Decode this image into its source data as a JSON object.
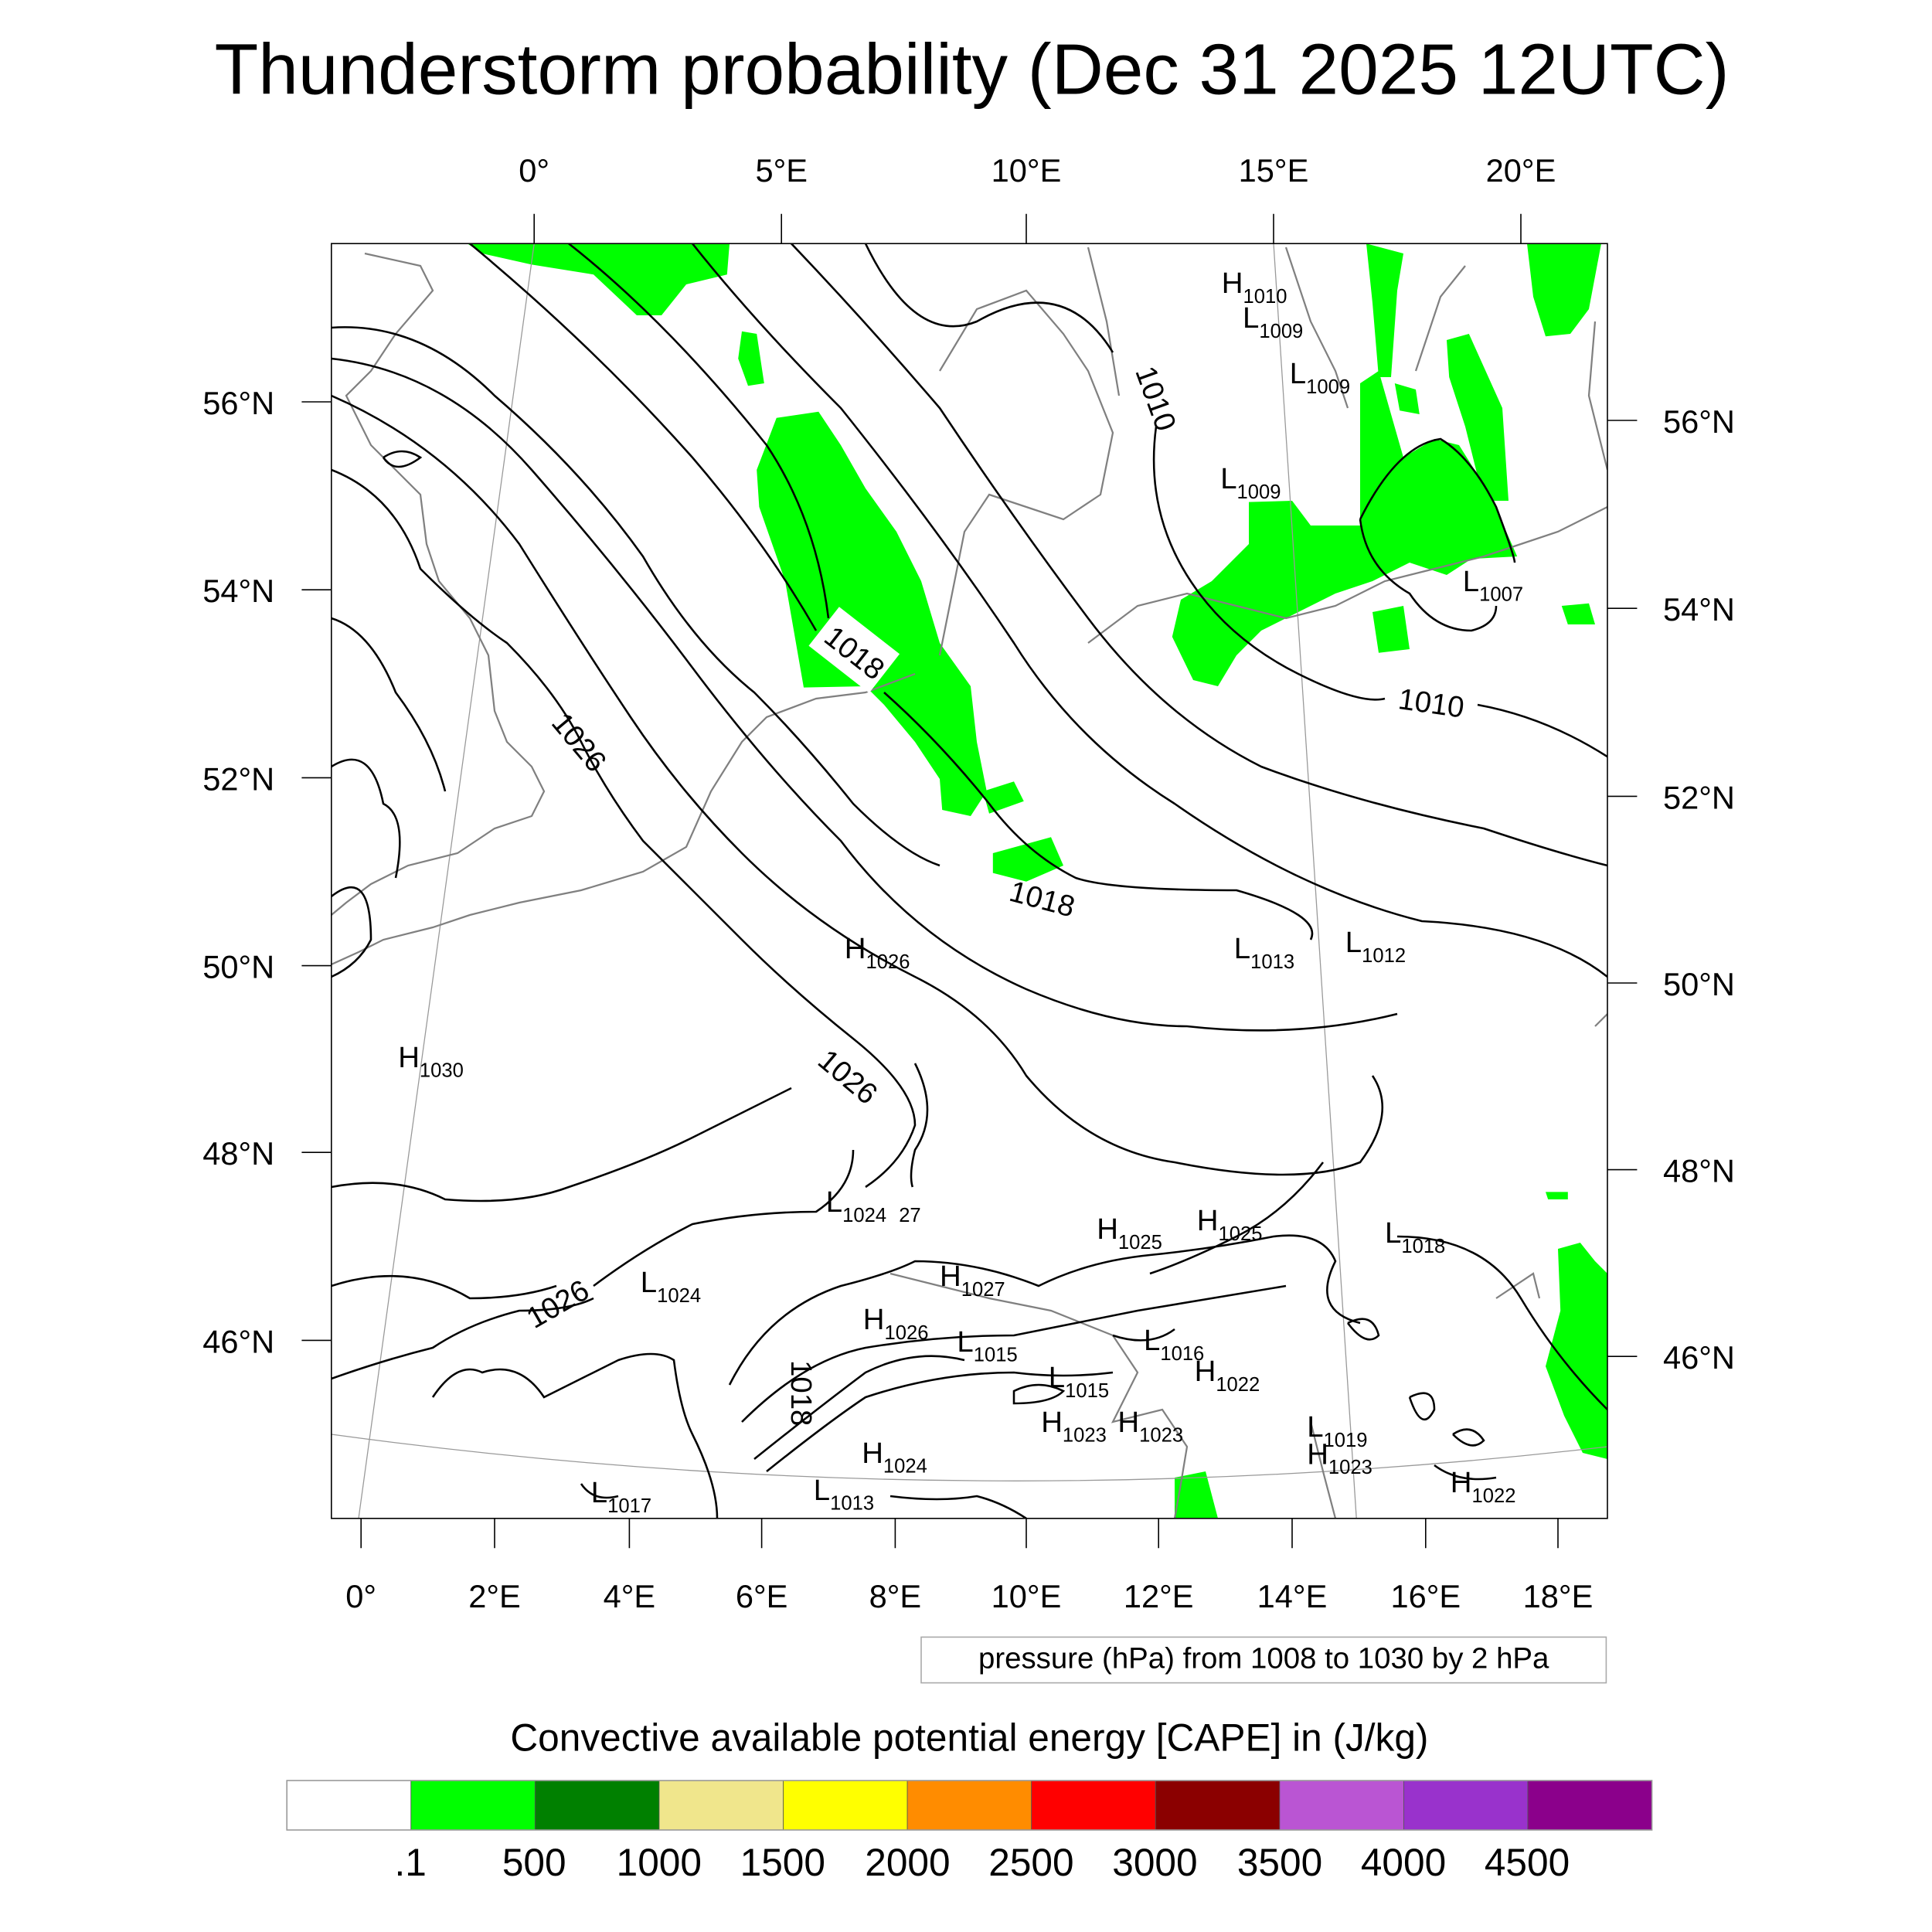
{
  "title": "Thunderstorm probability (Dec 31 2025 12UTC)",
  "axes": {
    "top_lon_labels": [
      "0°",
      "5°E",
      "10°E",
      "15°E",
      "20°E"
    ],
    "bottom_lon_labels": [
      "0°",
      "2°E",
      "4°E",
      "6°E",
      "8°E",
      "10°E",
      "12°E",
      "14°E",
      "16°E",
      "18°E"
    ],
    "left_lat_labels": [
      "56°N",
      "54°N",
      "52°N",
      "50°N",
      "48°N",
      "46°N"
    ],
    "right_lat_labels": [
      "56°N",
      "54°N",
      "52°N",
      "50°N",
      "48°N",
      "46°N"
    ]
  },
  "contour_info": "pressure (hPa) from 1008 to 1030 by 2 hPa",
  "contour_labels": [
    "1010",
    "1010",
    "1018",
    "1018",
    "1026",
    "1026",
    "1026",
    "1018",
    "27"
  ],
  "pressure_centers": [
    {
      "type": "H",
      "value": "1010"
    },
    {
      "type": "L",
      "value": "1009"
    },
    {
      "type": "L",
      "value": "1009"
    },
    {
      "type": "L",
      "value": "1009"
    },
    {
      "type": "L",
      "value": "1007"
    },
    {
      "type": "H",
      "value": "1026"
    },
    {
      "type": "L",
      "value": "1013"
    },
    {
      "type": "L",
      "value": "1012"
    },
    {
      "type": "H",
      "value": "1030"
    },
    {
      "type": "L",
      "value": "1024"
    },
    {
      "type": "H",
      "value": "1025"
    },
    {
      "type": "H",
      "value": "1025"
    },
    {
      "type": "L",
      "value": "1018"
    },
    {
      "type": "H",
      "value": "1027"
    },
    {
      "type": "L",
      "value": "1024"
    },
    {
      "type": "H",
      "value": "1026"
    },
    {
      "type": "L",
      "value": "1015"
    },
    {
      "type": "L",
      "value": "1016"
    },
    {
      "type": "L",
      "value": "1015"
    },
    {
      "type": "H",
      "value": "1022"
    },
    {
      "type": "H",
      "value": "1023"
    },
    {
      "type": "H",
      "value": "1023"
    },
    {
      "type": "L",
      "value": "1019"
    },
    {
      "type": "H",
      "value": "1023"
    },
    {
      "type": "H",
      "value": "1024"
    },
    {
      "type": "L",
      "value": "1017"
    },
    {
      "type": "L",
      "value": "1013"
    },
    {
      "type": "H",
      "value": "1022"
    }
  ],
  "colorbar": {
    "title": "Convective available potential energy [CAPE] in (J/kg)",
    "colors": [
      "#ffffff",
      "#00ff00",
      "#008000",
      "#f0e68c",
      "#ffff00",
      "#ff8c00",
      "#ff0000",
      "#8b0000",
      "#ba55d3",
      "#9932cc",
      "#8b008b"
    ],
    "labels": [
      ".1",
      "500",
      "1000",
      "1500",
      "2000",
      "2500",
      "3000",
      "3500",
      "4000",
      "4500"
    ]
  },
  "colors": {
    "cape_fill": "#00ff00",
    "coast": "#808080",
    "isobar": "#000000"
  }
}
